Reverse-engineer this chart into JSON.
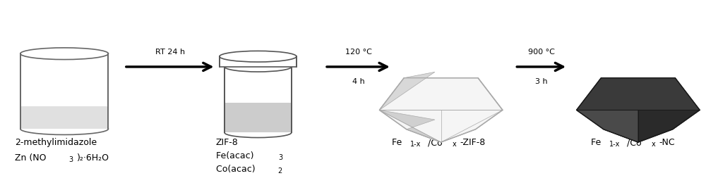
{
  "bg_color": "#ffffff",
  "arrow1_label_top": "RT 24 h",
  "arrow2_label_top": "120 °C",
  "arrow2_label_bot": "4 h",
  "arrow3_label_top": "900 °C",
  "arrow3_label_bot": "3 h",
  "font_size_label": 9,
  "font_size_arrow": 8
}
